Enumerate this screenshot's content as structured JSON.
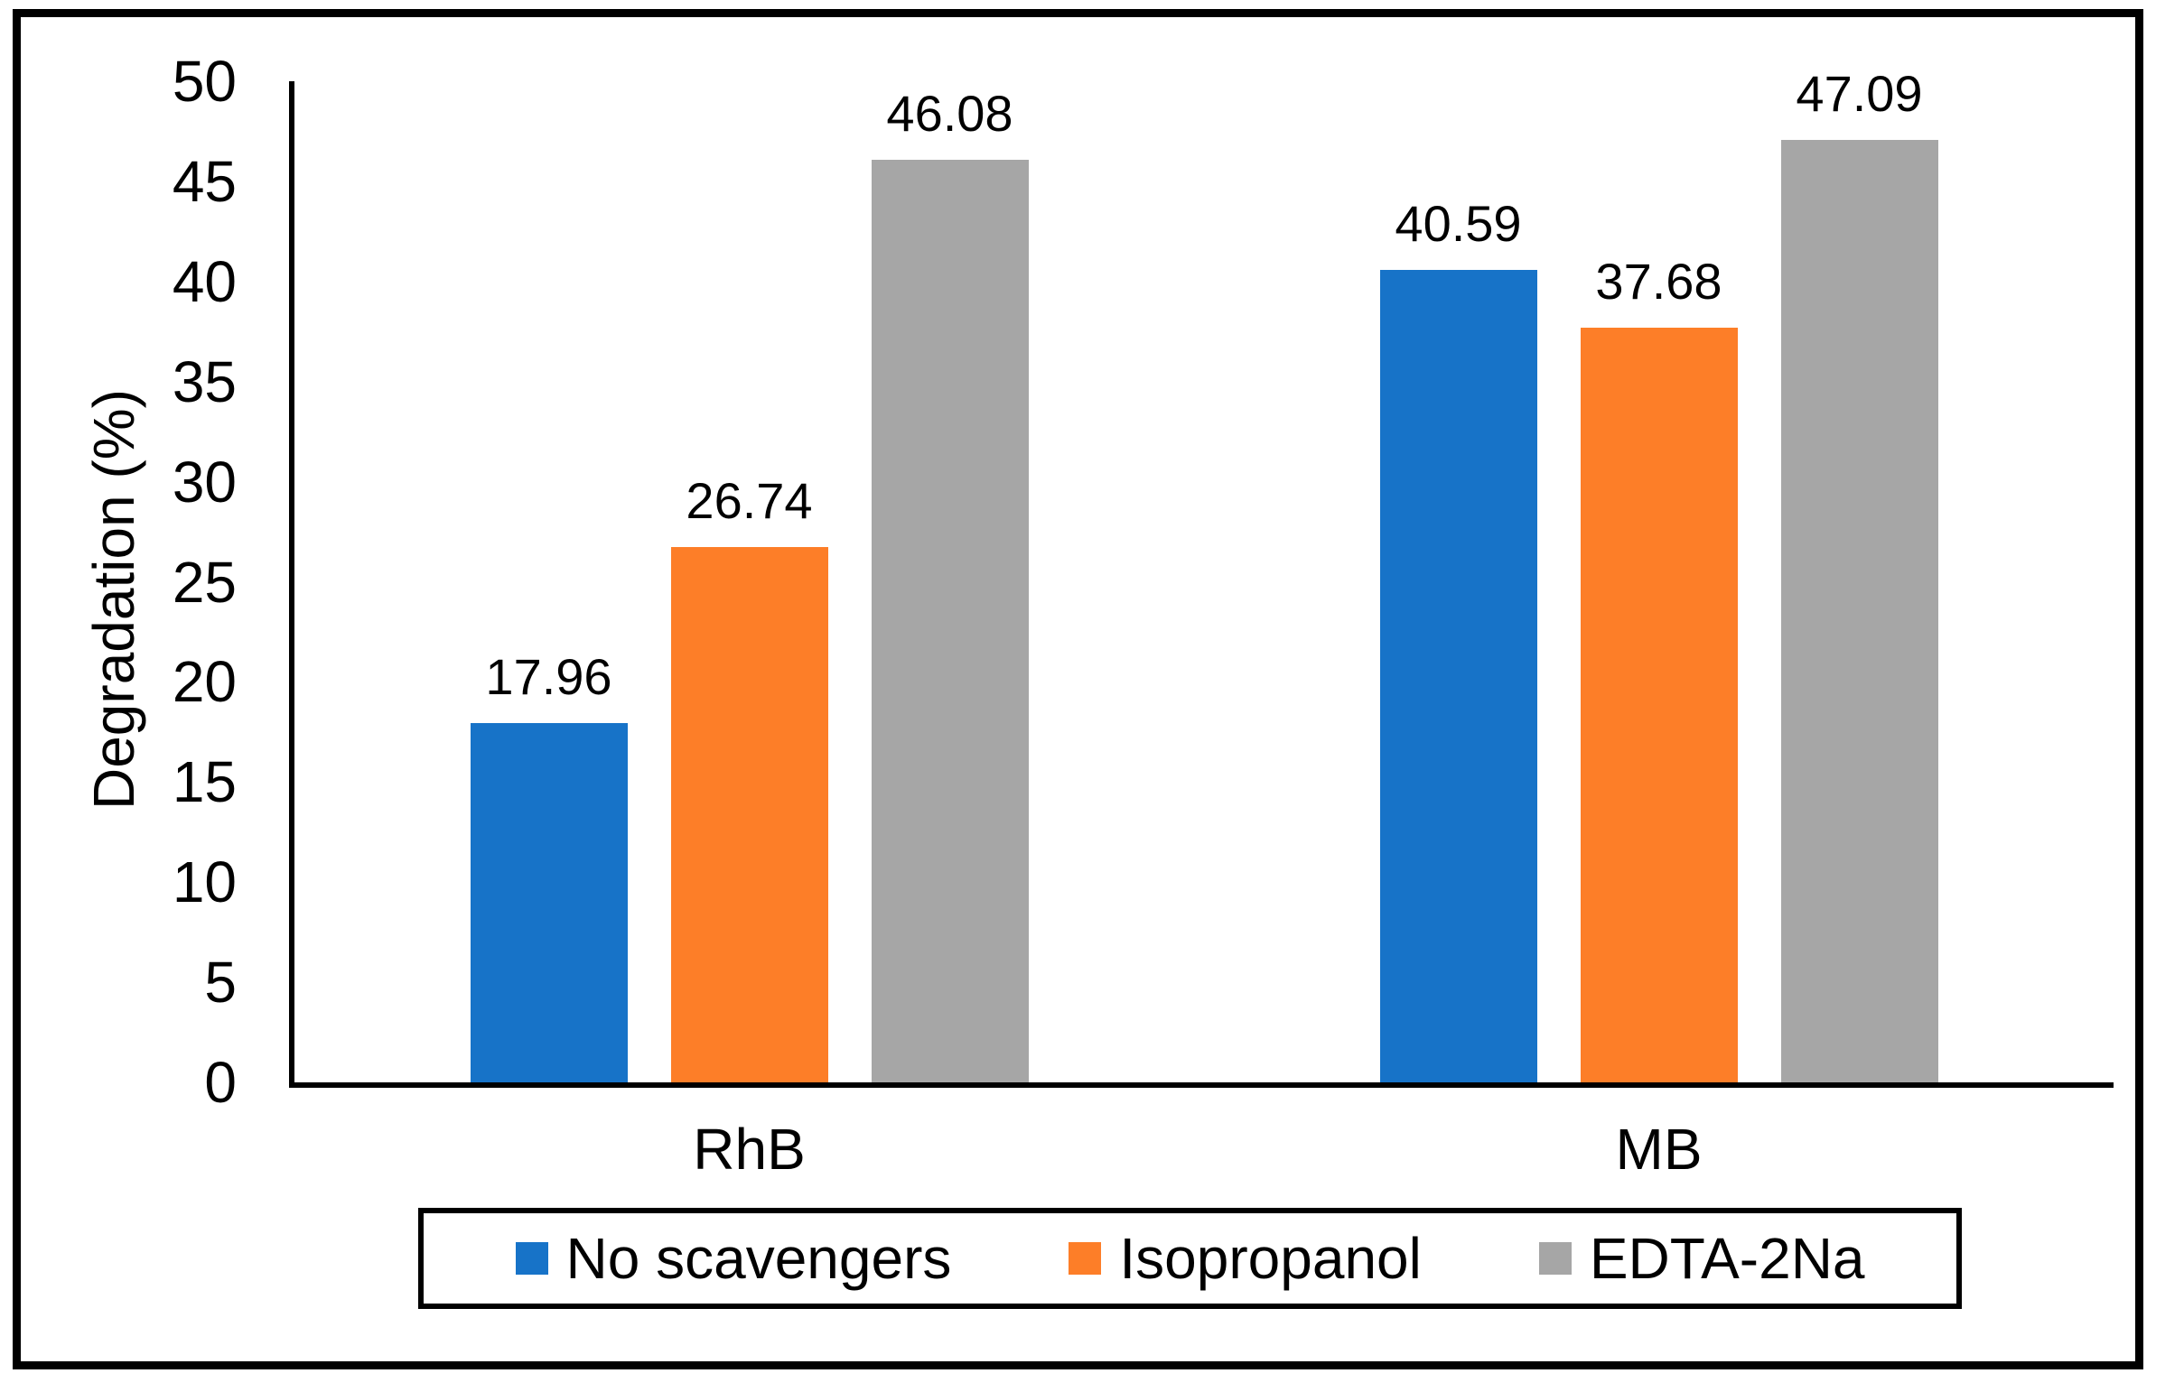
{
  "figure": {
    "background_color": "#FFFFFF",
    "border_color": "#000000"
  },
  "chart_data": {
    "type": "bar",
    "title": "",
    "xlabel": "",
    "ylabel": "Degradation (%)",
    "categories": [
      "RhB",
      "MB"
    ],
    "series": [
      {
        "name": "No scavengers",
        "color": "#1773C8",
        "values": [
          17.96,
          40.59
        ]
      },
      {
        "name": "Isopropanol",
        "color": "#FD7E28",
        "values": [
          26.74,
          37.68
        ]
      },
      {
        "name": "EDTA-2Na",
        "color": "#A6A6A6",
        "values": [
          46.08,
          47.09
        ]
      }
    ],
    "data_labels": [
      "17.96",
      "26.74",
      "46.08",
      "40.59",
      "37.68",
      "47.09"
    ],
    "ylim": [
      0,
      50
    ],
    "ytick_step": 5,
    "yticks": [
      0,
      5,
      10,
      15,
      20,
      25,
      30,
      35,
      40,
      45,
      50
    ],
    "grid": false,
    "legend_position": "bottom",
    "axis_color": "#000000",
    "text_color": "#000000"
  }
}
